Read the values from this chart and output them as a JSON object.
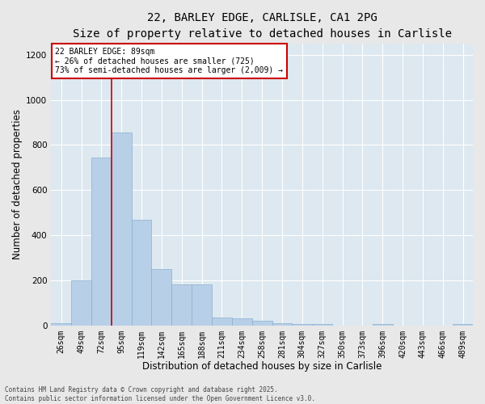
{
  "title_line1": "22, BARLEY EDGE, CARLISLE, CA1 2PG",
  "title_line2": "Size of property relative to detached houses in Carlisle",
  "xlabel": "Distribution of detached houses by size in Carlisle",
  "ylabel": "Number of detached properties",
  "bar_labels": [
    "26sqm",
    "49sqm",
    "72sqm",
    "95sqm",
    "119sqm",
    "142sqm",
    "165sqm",
    "188sqm",
    "211sqm",
    "234sqm",
    "258sqm",
    "281sqm",
    "304sqm",
    "327sqm",
    "350sqm",
    "373sqm",
    "396sqm",
    "420sqm",
    "443sqm",
    "466sqm",
    "489sqm"
  ],
  "bar_values": [
    10,
    200,
    745,
    855,
    470,
    250,
    180,
    180,
    35,
    30,
    20,
    10,
    5,
    5,
    0,
    0,
    5,
    0,
    0,
    0,
    5
  ],
  "bar_color": "#b8cfe8",
  "bar_edge_color": "#8ab0d0",
  "background_color": "#dde8f0",
  "grid_color": "#ffffff",
  "vline_color": "#cc0000",
  "vline_x": 2.5,
  "annotation_text": "22 BARLEY EDGE: 89sqm\n← 26% of detached houses are smaller (725)\n73% of semi-detached houses are larger (2,009) →",
  "annotation_box_color": "#cc0000",
  "ylim": [
    0,
    1250
  ],
  "yticks": [
    0,
    200,
    400,
    600,
    800,
    1000,
    1200
  ],
  "footnote": "Contains HM Land Registry data © Crown copyright and database right 2025.\nContains public sector information licensed under the Open Government Licence v3.0.",
  "title_fontsize": 10,
  "subtitle_fontsize": 9,
  "tick_fontsize": 7,
  "xlabel_fontsize": 8.5,
  "ylabel_fontsize": 8.5,
  "fig_bg_color": "#e8e8e8"
}
